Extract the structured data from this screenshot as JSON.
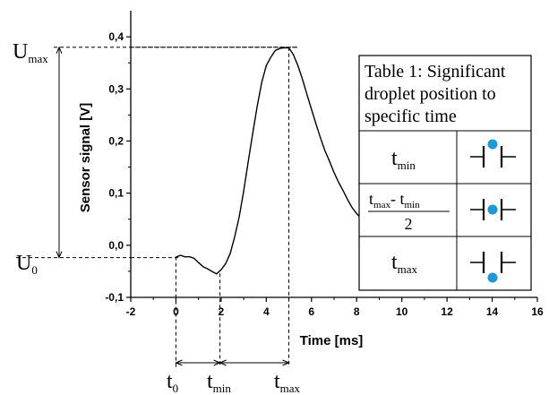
{
  "chart_data": {
    "type": "line",
    "xlabel": "Time [ms]",
    "ylabel": "Sensor signal [V]",
    "xlim": [
      -2,
      16
    ],
    "ylim": [
      -0.1,
      0.45
    ],
    "x_ticks": [
      -2,
      0,
      2,
      4,
      6,
      8,
      10,
      12,
      14,
      16
    ],
    "y_ticks": [
      -0.1,
      0.0,
      0.1,
      0.2,
      0.3,
      0.4
    ],
    "x_tick_labels": [
      "-2",
      "0",
      "2",
      "4",
      "6",
      "8",
      "10",
      "12",
      "14",
      "16"
    ],
    "y_tick_labels": [
      "-0,1",
      "0,0",
      "0,1",
      "0,2",
      "0,3",
      "0,4"
    ],
    "grid": false,
    "series": [
      {
        "x": [
          0.0,
          0.2,
          0.4,
          0.6,
          0.8,
          1.0,
          1.2,
          1.4,
          1.6,
          1.8,
          2.0,
          2.2,
          2.4,
          2.6,
          2.8,
          3.0,
          3.2,
          3.4,
          3.6,
          3.8,
          4.0,
          4.2,
          4.4,
          4.6,
          4.8,
          5.0,
          5.2,
          5.4,
          5.6,
          5.8,
          6.0,
          6.2,
          6.4,
          6.6,
          6.8,
          7.0,
          7.2,
          7.4,
          7.6,
          7.8,
          8.0,
          8.2
        ],
        "y": [
          -0.022,
          -0.02,
          -0.022,
          -0.021,
          -0.026,
          -0.033,
          -0.04,
          -0.046,
          -0.05,
          -0.054,
          -0.048,
          -0.035,
          -0.015,
          0.015,
          0.055,
          0.105,
          0.16,
          0.215,
          0.268,
          0.312,
          0.345,
          0.362,
          0.373,
          0.378,
          0.38,
          0.378,
          0.366,
          0.346,
          0.318,
          0.29,
          0.262,
          0.232,
          0.206,
          0.182,
          0.16,
          0.14,
          0.122,
          0.104,
          0.088,
          0.073,
          0.06,
          0.052
        ]
      }
    ],
    "annotations": {
      "u_max_label": "U",
      "u_max_sub": "max",
      "u_0_label": "U",
      "u_0_sub": "0",
      "u_max_value": 0.38,
      "u_0_value": -0.022,
      "t0_label": "t",
      "t0_sub": "0",
      "tmin_label": "t",
      "tmin_sub": "min",
      "tmax_label": "t",
      "tmax_sub": "max",
      "t0_value": 0.0,
      "tmin_value": 1.95,
      "tmax_value": 5.0
    }
  },
  "table": {
    "title_lines": [
      "Table 1: Significant",
      "droplet position to",
      "specific time"
    ],
    "rows": [
      {
        "t": "t",
        "sub": "min",
        "droplet": "top",
        "drop_color": "#1a9ad6"
      },
      {
        "t1": "t",
        "sub1": "max",
        "minus": "- t",
        "sub2": "min",
        "denominator": "2",
        "droplet": "middle",
        "drop_color": "#1a9ad6"
      },
      {
        "t": "t",
        "sub": "max",
        "droplet": "bottom",
        "drop_color": "#1a9ad6"
      }
    ]
  }
}
